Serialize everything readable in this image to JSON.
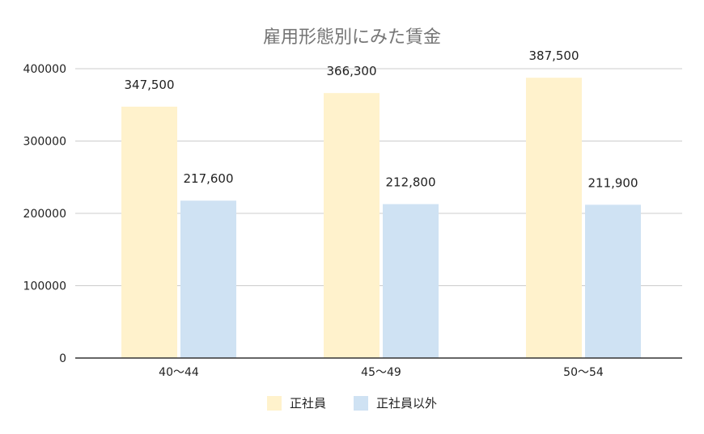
{
  "chart_data": {
    "type": "bar",
    "title": "雇用形態別にみた賃金",
    "categories": [
      "40〜44",
      "45〜49",
      "50〜54"
    ],
    "series": [
      {
        "name": "正社員",
        "values": [
          347500,
          366300,
          387500
        ],
        "labels": [
          "347,500",
          "366,300",
          "387,500"
        ],
        "color": "#fff2cc"
      },
      {
        "name": "正社員以外",
        "values": [
          217600,
          212800,
          211900
        ],
        "labels": [
          "217,600",
          "212,800",
          "211,900"
        ],
        "color": "#cfe2f3"
      }
    ],
    "yticks": [
      "0",
      "100000",
      "200000",
      "300000",
      "400000"
    ],
    "ylim": [
      0,
      400000
    ],
    "grid": true,
    "legend_position": "bottom"
  }
}
